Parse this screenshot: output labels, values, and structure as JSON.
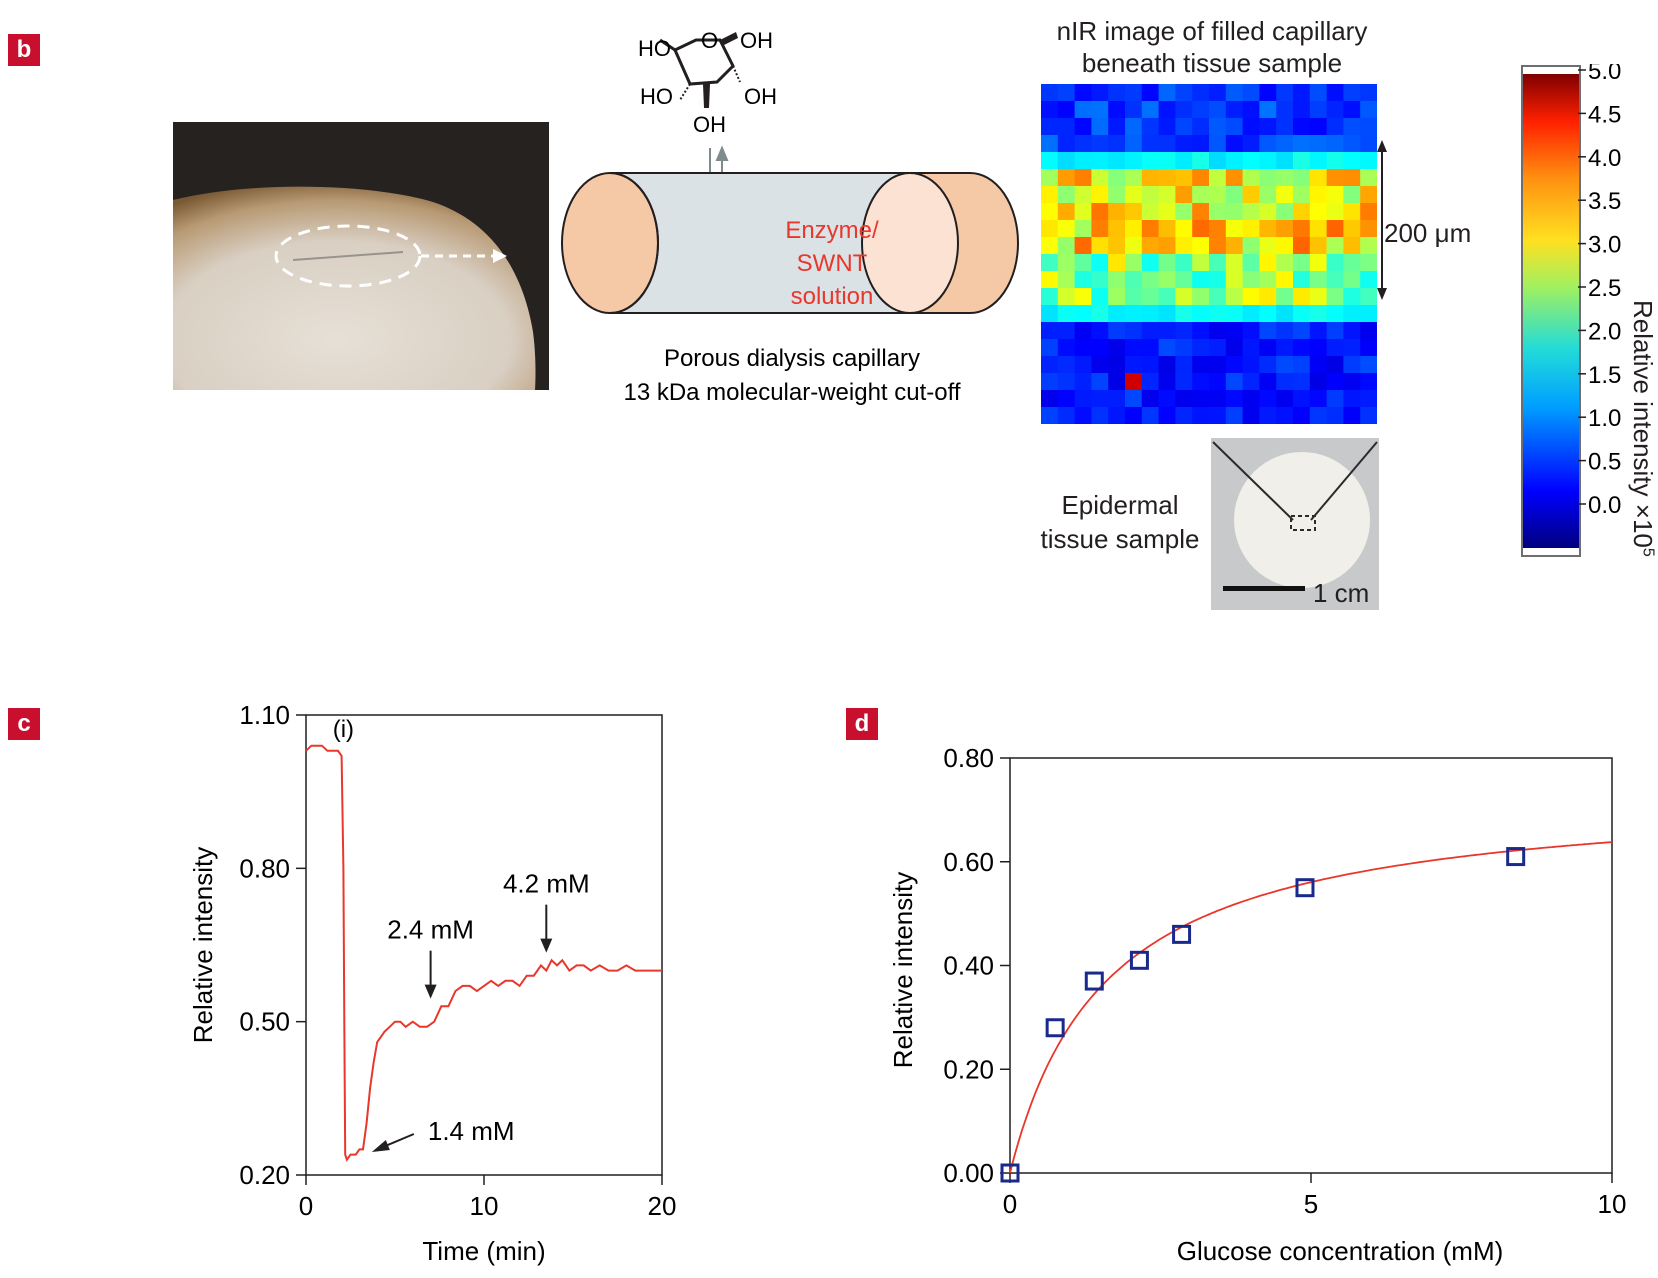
{
  "panel_labels": {
    "b": "b",
    "c": "c",
    "d": "d"
  },
  "panel_b": {
    "glucose_labels": {
      "ho_top": "HO",
      "oh_top": "OH",
      "o_ring": "O",
      "ho_mid": "HO",
      "oh_mid": "OH",
      "oh_bottom": "OH"
    },
    "enzyme_label": [
      "Enzyme/",
      "SWNT",
      "solution"
    ],
    "capillary_caption": [
      "Porous dialysis capillary",
      "13 kDa molecular-weight cut-off"
    ],
    "nir_title": [
      "nIR image of filled capillary",
      "beneath tissue sample"
    ],
    "scale_200": "200 μm",
    "epidermal_label": [
      "Epidermal",
      "tissue sample"
    ],
    "scale_1cm": "1 cm",
    "colorbar": {
      "ticks": [
        "5.0",
        "4.5",
        "4.0",
        "3.5",
        "3.0",
        "2.5",
        "2.0",
        "1.5",
        "1.0",
        "0.5",
        "0.0"
      ],
      "label": "Relative intensity ×10",
      "label_sup": "5"
    },
    "colors": {
      "accent_red": "#e8372b",
      "cap_end": "#f6c9a6",
      "cap_body": "#dbe2e6"
    }
  },
  "chart_data": [
    {
      "panel": "c",
      "type": "line",
      "xlabel": "Time (min)",
      "ylabel": "Relative intensity",
      "xlim": [
        0,
        20
      ],
      "ylim": [
        0.2,
        1.1
      ],
      "xticks": [
        "0",
        "10",
        "20"
      ],
      "yticks": [
        "0.20",
        "0.50",
        "0.80",
        "1.10"
      ],
      "series": [
        {
          "x": [
            0,
            0.3,
            0.6,
            0.9,
            1.2,
            1.5,
            1.8,
            2.0,
            2.1,
            2.15,
            2.2,
            2.3,
            2.5,
            2.8,
            3.0,
            3.2,
            3.4,
            3.6,
            3.8,
            4.0,
            4.2,
            4.4,
            4.7,
            5.0,
            5.3,
            5.6,
            6.0,
            6.4,
            6.8,
            7.2,
            7.6,
            8.0,
            8.4,
            8.8,
            9.2,
            9.6,
            10.0,
            10.4,
            10.8,
            11.2,
            11.6,
            12.0,
            12.4,
            12.8,
            13.2,
            13.5,
            13.8,
            14.1,
            14.4,
            14.8,
            15.2,
            15.6,
            16.0,
            16.5,
            17.0,
            17.5,
            18.0,
            18.5,
            19.0,
            19.5,
            20.0
          ],
          "y": [
            1.03,
            1.04,
            1.04,
            1.04,
            1.03,
            1.03,
            1.03,
            1.02,
            0.8,
            0.5,
            0.24,
            0.23,
            0.24,
            0.24,
            0.25,
            0.25,
            0.3,
            0.37,
            0.42,
            0.46,
            0.47,
            0.48,
            0.49,
            0.5,
            0.5,
            0.49,
            0.5,
            0.49,
            0.49,
            0.5,
            0.53,
            0.53,
            0.56,
            0.57,
            0.57,
            0.56,
            0.57,
            0.58,
            0.57,
            0.58,
            0.58,
            0.57,
            0.59,
            0.59,
            0.61,
            0.6,
            0.62,
            0.61,
            0.62,
            0.6,
            0.61,
            0.61,
            0.6,
            0.61,
            0.6,
            0.6,
            0.61,
            0.6,
            0.6,
            0.6,
            0.6
          ]
        }
      ],
      "annotations": [
        {
          "text": "(i)",
          "x": 2.1,
          "y": 1.08
        },
        {
          "text": "1.4 mM",
          "x": 3.7,
          "y": 0.245
        },
        {
          "text": "2.4 mM",
          "x": 7.0,
          "y": 0.545
        },
        {
          "text": "4.2 mM",
          "x": 13.5,
          "y": 0.635
        }
      ]
    },
    {
      "panel": "d",
      "type": "scatter",
      "xlabel": "Glucose concentration (mM)",
      "ylabel": "Relative intensity",
      "xlim": [
        0,
        10
      ],
      "ylim": [
        0,
        0.8
      ],
      "xticks": [
        "0",
        "5",
        "10"
      ],
      "yticks": [
        "0.00",
        "0.20",
        "0.40",
        "0.60",
        "0.80"
      ],
      "points": {
        "x": [
          0,
          0.75,
          1.4,
          2.15,
          2.85,
          4.9,
          8.4
        ],
        "y": [
          0.0,
          0.28,
          0.37,
          0.41,
          0.46,
          0.55,
          0.61
        ]
      },
      "fit_curve": {
        "vmax": 0.74,
        "km": 1.6
      }
    }
  ]
}
